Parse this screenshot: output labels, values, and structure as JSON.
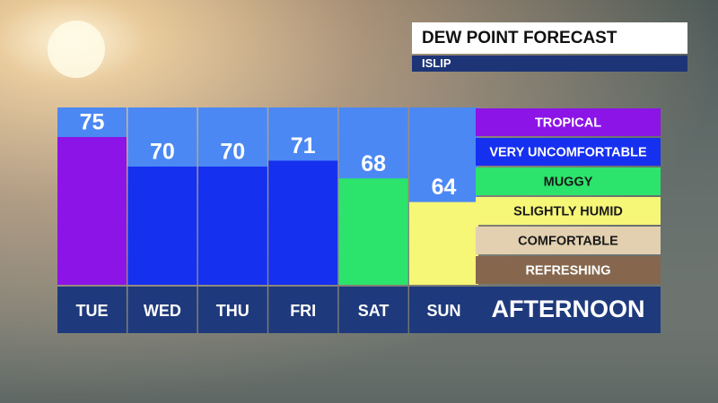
{
  "chart_data": {
    "type": "bar",
    "title": "DEW POINT FORECAST",
    "subtitle": "ISLIP",
    "categories": [
      "TUE",
      "WED",
      "THU",
      "FRI",
      "SAT",
      "SUN"
    ],
    "values": [
      75,
      70,
      70,
      71,
      68,
      64
    ],
    "colors": [
      "#8c14e6",
      "#1630f0",
      "#1630f0",
      "#1630f0",
      "#2ce46c",
      "#f6f677"
    ],
    "ylim": [
      50,
      80
    ],
    "legend": [
      {
        "label": "TROPICAL",
        "color": "#8c14e6"
      },
      {
        "label": "VERY UNCOMFORTABLE",
        "color": "#1630f0"
      },
      {
        "label": "MUGGY",
        "color": "#2ce46c"
      },
      {
        "label": "SLIGHTLY HUMID",
        "color": "#f6f677"
      },
      {
        "label": "COMFORTABLE",
        "color": "#e2d0b0"
      },
      {
        "label": "REFRESHING",
        "color": "#86674d"
      }
    ],
    "period_label": "AFTERNOON"
  }
}
